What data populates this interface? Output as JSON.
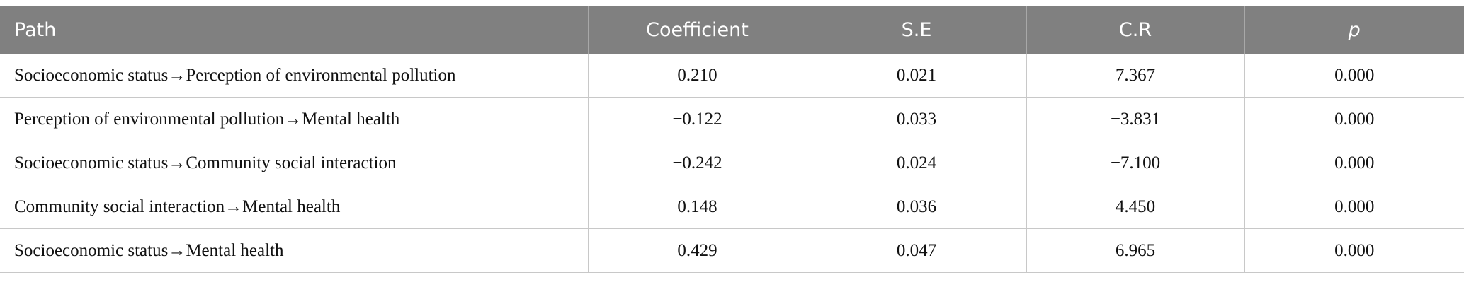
{
  "table": {
    "header": [
      "Path",
      "Coefficient",
      "S.E",
      "C.R",
      "p"
    ],
    "rows": [
      [
        "Socioeconomic status→Perception of environmental pollution",
        "0.210",
        "0.021",
        "7.367",
        "0.000"
      ],
      [
        "Perception of environmental pollution→Mental health",
        "−0.122",
        "0.033",
        "−3.831",
        "0.000"
      ],
      [
        "Socioeconomic status→Community social interaction",
        "−0.242",
        "0.024",
        "−7.100",
        "0.000"
      ],
      [
        "Community social interaction→Mental health",
        "0.148",
        "0.036",
        "4.450",
        "0.000"
      ],
      [
        "Socioeconomic status→Mental health",
        "0.429",
        "0.047",
        "6.965",
        "0.000"
      ]
    ]
  }
}
